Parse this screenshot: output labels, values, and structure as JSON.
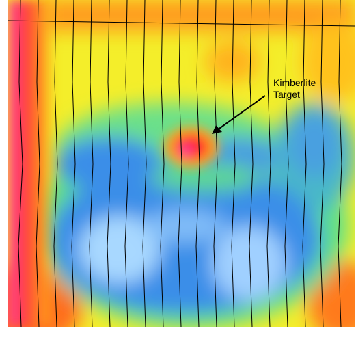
{
  "annotation": {
    "lines": [
      "Kimberlite",
      "Target"
    ]
  }
}
